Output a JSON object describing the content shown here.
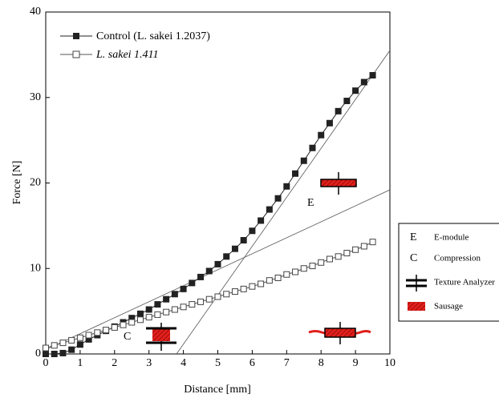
{
  "chart_data": {
    "type": "line",
    "x_label": "Distance [mm]",
    "y_label": "Force [N]",
    "x": [
      0,
      0.25,
      0.5,
      0.75,
      1,
      1.25,
      1.5,
      1.75,
      2,
      2.25,
      2.5,
      2.75,
      3,
      3.25,
      3.5,
      3.75,
      4,
      4.25,
      4.5,
      4.75,
      5,
      5.25,
      5.5,
      5.75,
      6,
      6.25,
      6.5,
      6.75,
      7,
      7.25,
      7.5,
      7.75,
      8,
      8.25,
      8.5,
      8.75,
      9,
      9.25,
      9.5
    ],
    "series": [
      {
        "name": "Control (L. sakei 1.2037)",
        "color": "#222222",
        "marker": "filled-square",
        "values": [
          0,
          0,
          0.1,
          0.5,
          1.1,
          1.7,
          2.2,
          2.7,
          3.2,
          3.7,
          4.2,
          4.7,
          5.2,
          5.8,
          6.4,
          7.0,
          7.6,
          8.3,
          9.0,
          9.7,
          10.5,
          11.4,
          12.3,
          13.3,
          14.4,
          15.6,
          16.9,
          18.2,
          19.6,
          21.1,
          22.6,
          24.1,
          25.6,
          27.0,
          28.4,
          29.6,
          30.8,
          31.8,
          32.6
        ]
      },
      {
        "name": "L. sakei 1.411",
        "color": "#555555",
        "marker": "open-square",
        "values": [
          0.7,
          1.0,
          1.3,
          1.6,
          1.9,
          2.2,
          2.5,
          2.8,
          3.1,
          3.4,
          3.7,
          4.0,
          4.3,
          4.6,
          4.9,
          5.2,
          5.5,
          5.8,
          6.1,
          6.4,
          6.7,
          7.0,
          7.3,
          7.6,
          7.9,
          8.2,
          8.6,
          8.9,
          9.3,
          9.6,
          10.0,
          10.3,
          10.7,
          11.1,
          11.4,
          11.8,
          12.2,
          12.6,
          13.1
        ]
      }
    ],
    "reference_lines": [
      {
        "x": [
          3.8,
          10
        ],
        "y": [
          0,
          35.5
        ]
      },
      {
        "x": [
          0,
          10
        ],
        "y": [
          0.5,
          19.2
        ]
      }
    ],
    "xlim": [
      0,
      10
    ],
    "xticks": [
      0,
      1,
      2,
      3,
      4,
      5,
      6,
      7,
      8,
      9,
      10
    ],
    "ylim": [
      0,
      40
    ],
    "yticks": [
      0,
      10,
      20,
      30,
      40
    ],
    "annotations": [
      "E",
      "C"
    ],
    "key": [
      {
        "symbol": "E",
        "label": "E-module"
      },
      {
        "symbol": "C",
        "label": "Compression"
      },
      {
        "label": "Texture Analyzer"
      },
      {
        "label": "Sausage"
      }
    ]
  }
}
